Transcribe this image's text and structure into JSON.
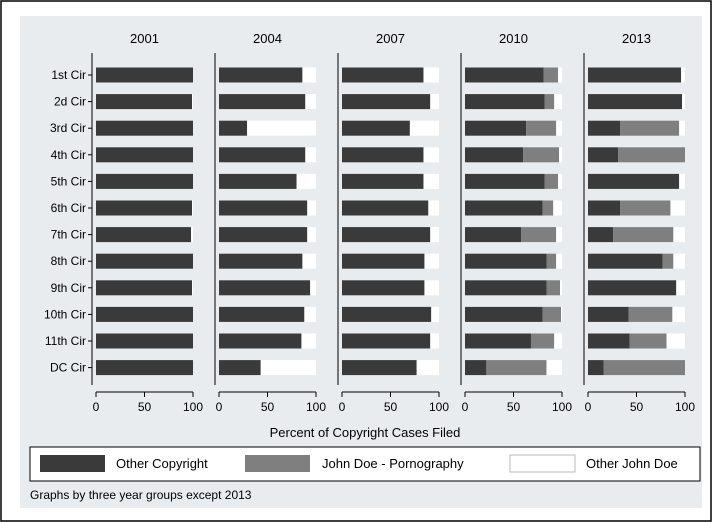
{
  "chart_data": {
    "type": "bar",
    "orientation": "horizontal",
    "stacked": true,
    "facet_titles": [
      "2001",
      "2004",
      "2007",
      "2010",
      "2013"
    ],
    "categories": [
      "1st Cir",
      "2d Cir",
      "3rd Cir",
      "4th Cir",
      "5th Cir",
      "6th Cir",
      "7th Cir",
      "8th Cir",
      "9th Cir",
      "10th Cir",
      "11th Cir",
      "DC Cir"
    ],
    "xlabel": "Percent of Copyright Cases Filed",
    "xlim": [
      0,
      100
    ],
    "xticks": [
      0,
      50,
      100
    ],
    "series_names": [
      "Other Copyright",
      "John Doe - Pornography",
      "Other John Doe"
    ],
    "colors": [
      "#3a3a3a",
      "#7f7f7f",
      "#ffffff"
    ],
    "facets": [
      {
        "title": "2001",
        "series": [
          {
            "name": "Other Copyright",
            "values": [
              100,
              99,
              100,
              100,
              100,
              99,
              98,
              100,
              99,
              100,
              100,
              100
            ]
          },
          {
            "name": "John Doe - Pornography",
            "values": [
              0,
              0,
              0,
              0,
              0,
              0,
              0,
              0,
              0,
              0,
              0,
              0
            ]
          },
          {
            "name": "Other John Doe",
            "values": [
              0,
              1,
              0,
              0,
              0,
              1,
              2,
              0,
              1,
              0,
              0,
              0
            ]
          }
        ]
      },
      {
        "title": "2004",
        "series": [
          {
            "name": "Other Copyright",
            "values": [
              86,
              89,
              29,
              89,
              80,
              91,
              91,
              86,
              94,
              88,
              85,
              43
            ]
          },
          {
            "name": "John Doe - Pornography",
            "values": [
              0,
              0,
              0,
              0,
              0,
              0,
              0,
              0,
              0,
              0,
              0,
              0
            ]
          },
          {
            "name": "Other John Doe",
            "values": [
              14,
              11,
              71,
              11,
              20,
              9,
              9,
              14,
              6,
              12,
              15,
              57
            ]
          }
        ]
      },
      {
        "title": "2007",
        "series": [
          {
            "name": "Other Copyright",
            "values": [
              84,
              91,
              70,
              84,
              84,
              89,
              91,
              85,
              85,
              92,
              91,
              77
            ]
          },
          {
            "name": "John Doe - Pornography",
            "values": [
              0,
              0,
              0,
              0,
              0,
              0,
              0,
              0,
              0,
              0,
              0,
              0
            ]
          },
          {
            "name": "Other John Doe",
            "values": [
              16,
              9,
              30,
              16,
              16,
              11,
              9,
              15,
              15,
              8,
              9,
              23
            ]
          }
        ]
      },
      {
        "title": "2010",
        "series": [
          {
            "name": "Other Copyright",
            "values": [
              81,
              82,
              63,
              60,
              82,
              80,
              58,
              84,
              84,
              80,
              68,
              22
            ]
          },
          {
            "name": "John Doe - Pornography",
            "values": [
              15,
              10,
              31,
              37,
              14,
              11,
              36,
              10,
              14,
              19,
              24,
              62
            ]
          },
          {
            "name": "Other John Doe",
            "values": [
              4,
              8,
              6,
              3,
              4,
              9,
              6,
              6,
              2,
              1,
              8,
              16
            ]
          }
        ]
      },
      {
        "title": "2013",
        "series": [
          {
            "name": "Other Copyright",
            "values": [
              96,
              97,
              33,
              31,
              94,
              33,
              26,
              77,
              91,
              42,
              43,
              16
            ]
          },
          {
            "name": "John Doe - Pornography",
            "values": [
              0,
              0,
              61,
              69,
              0,
              52,
              62,
              11,
              0,
              45,
              38,
              84
            ]
          },
          {
            "name": "Other John Doe",
            "values": [
              4,
              3,
              6,
              0,
              6,
              15,
              12,
              12,
              9,
              13,
              19,
              0
            ]
          }
        ]
      }
    ],
    "legend": {
      "position": "bottom",
      "labels": [
        "Other Copyright",
        "John Doe - Pornography",
        "Other John Doe"
      ]
    },
    "note": "Graphs by three year groups except 2013"
  }
}
